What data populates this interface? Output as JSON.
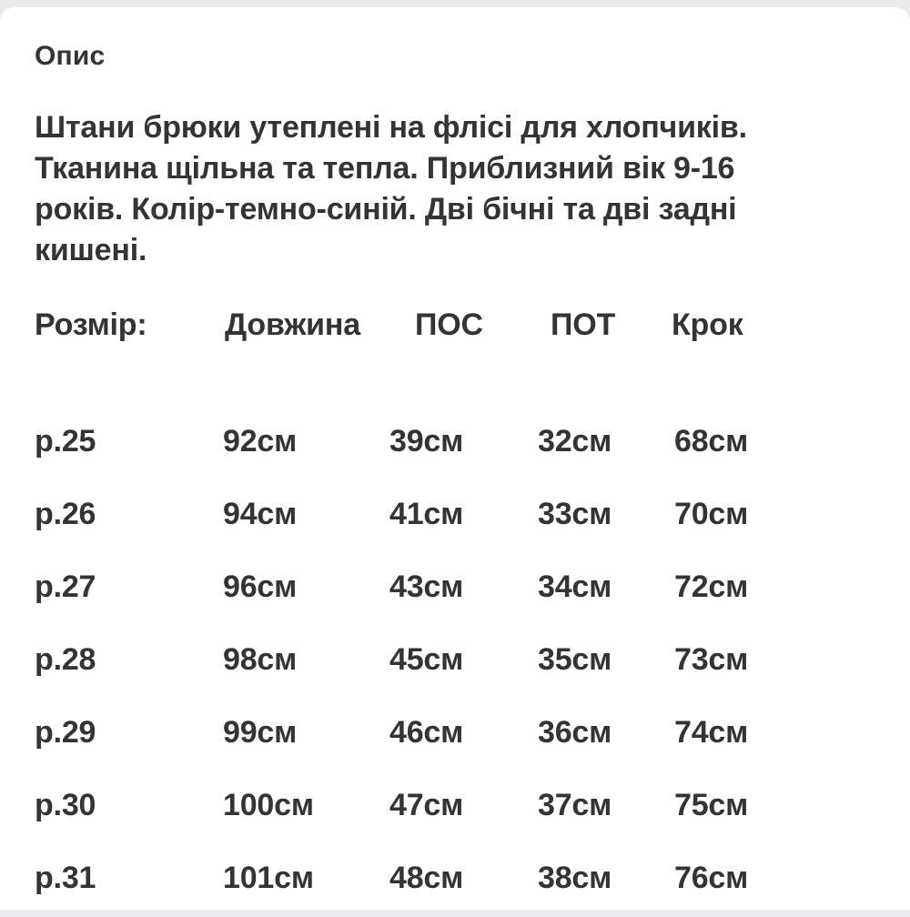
{
  "page": {
    "section_title": "Опис",
    "description_lines": [
      "Штани брюки утеплені на флісі для хлопчиків.",
      "Тканина щільна та тепла. Приблизний вік 9-16",
      "років. Колір-темно-синій. Дві бічні та дві задні",
      "кишені."
    ]
  },
  "size_table": {
    "headers": {
      "size": "Розмір:",
      "length": "Довжина",
      "pos": "ПОС",
      "pot": "ПОТ",
      "krok": "Крок"
    },
    "rows": [
      {
        "size": "р.25",
        "length": "92см",
        "pos": "39см",
        "pot": "32см",
        "krok": "68см"
      },
      {
        "size": "р.26",
        "length": "94см",
        "pos": "41см",
        "pot": "33см",
        "krok": "70см"
      },
      {
        "size": "р.27",
        "length": "96см",
        "pos": "43см",
        "pot": "34см",
        "krok": "72см"
      },
      {
        "size": "р.28",
        "length": "98см",
        "pos": "45см",
        "pot": "35см",
        "krok": "73см"
      },
      {
        "size": "р.29",
        "length": "99см",
        "pos": "46см",
        "pot": "36см",
        "krok": "74см"
      },
      {
        "size": "р.30",
        "length": "100см",
        "pos": "47см",
        "pot": "37см",
        "krok": "75см"
      },
      {
        "size": "р.31",
        "length": "101см",
        "pos": "48см",
        "pot": "38см",
        "krok": "76см"
      }
    ]
  },
  "colors": {
    "text": "#343434",
    "background_strip": "#e9e9ef",
    "card_background": "#ffffff"
  }
}
